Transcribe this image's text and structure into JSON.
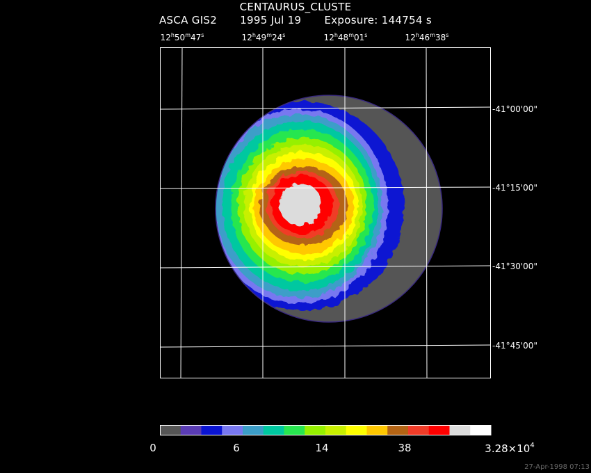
{
  "header": {
    "object": "CENTAURUS_CLUSTE",
    "instrument": "ASCA GIS2",
    "date": "1995 Jul 19",
    "exposure": "Exposure: 144754 s"
  },
  "ra_labels": [
    {
      "h": "12",
      "m": "50",
      "s": "47"
    },
    {
      "h": "12",
      "m": "49",
      "s": "24"
    },
    {
      "h": "12",
      "m": "48",
      "s": "01"
    },
    {
      "h": "12",
      "m": "46",
      "s": "38"
    }
  ],
  "dec_labels": [
    "-41°00'00\"",
    "-41°15'00\"",
    "-41°30'00\"",
    "-41°45'00\""
  ],
  "colorbar": {
    "colors": [
      "#555555",
      "#5a3cb4",
      "#0a14d2",
      "#7878f0",
      "#3c9ec8",
      "#00c8a0",
      "#28e650",
      "#96f000",
      "#c8f000",
      "#ffff00",
      "#ffc800",
      "#b46414",
      "#f03c28",
      "#ff0000",
      "#dcdcdc",
      "#ffffff"
    ],
    "labels": [
      "0",
      "6",
      "14",
      "38"
    ],
    "max_mantissa": "3.28×10",
    "max_exponent": "4"
  },
  "timestamp": "27-Apr-1998 07:13"
}
